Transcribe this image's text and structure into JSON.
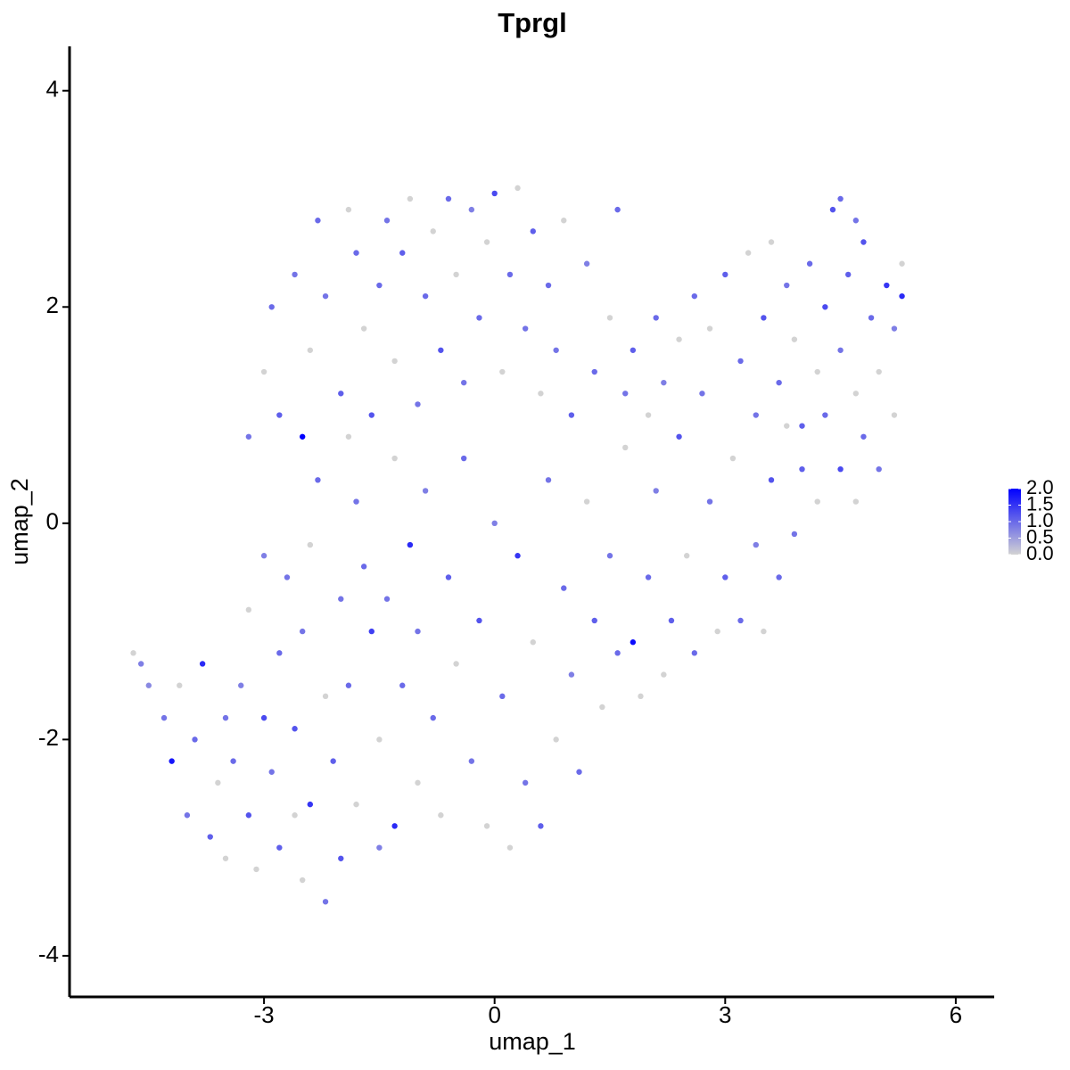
{
  "chart_data": {
    "type": "scatter",
    "title": "Tprgl",
    "x_label": "umap_1",
    "y_label": "umap_2",
    "xlim": [
      -5.53,
      6.5
    ],
    "ylim": [
      -4.38,
      4.41
    ],
    "xticks": [
      -3,
      0,
      3,
      6
    ],
    "yticks": [
      -4,
      -2,
      0,
      2,
      4
    ],
    "color_low": "#d3d3d3",
    "color_high": "#0000ff",
    "color_lim": [
      0,
      2
    ],
    "color_ticks": [
      {
        "value": 0,
        "label": "0.0"
      },
      {
        "value": 0.5,
        "label": "0.5"
      },
      {
        "value": 1,
        "label": "1.0"
      },
      {
        "value": 1.5,
        "label": "1.5"
      },
      {
        "value": 2,
        "label": "2.0"
      }
    ],
    "x": [
      -4.7,
      -4.6,
      -4.5,
      -4.3,
      -4.2,
      -4.0,
      -4.1,
      -3.9,
      -3.8,
      -3.7,
      -3.6,
      -3.5,
      -3.5,
      -3.4,
      -3.3,
      -3.2,
      -3.1,
      -3.0,
      -3.0,
      -3.2,
      -2.9,
      -2.8,
      -2.8,
      -2.7,
      -2.6,
      -2.6,
      -2.5,
      -2.5,
      -2.4,
      -2.4,
      -2.3,
      -2.2,
      -2.2,
      -2.1,
      -2.0,
      -2.0,
      -1.9,
      -1.9,
      -1.8,
      -1.8,
      -1.7,
      -1.6,
      -1.5,
      -1.5,
      -1.4,
      -1.3,
      -1.3,
      -1.2,
      -1.1,
      -1.0,
      -1.0,
      -0.9,
      -0.8,
      -0.7,
      -0.6,
      -0.5,
      -0.4,
      -0.3,
      -0.2,
      -0.1,
      0.0,
      0.1,
      0.2,
      0.3,
      0.4,
      0.5,
      0.6,
      0.7,
      0.8,
      0.9,
      1.0,
      1.1,
      1.2,
      1.3,
      1.4,
      1.5,
      1.6,
      1.8,
      1.7,
      1.9,
      2.0,
      2.1,
      2.2,
      2.3,
      2.4,
      2.5,
      2.6,
      2.8,
      2.9,
      3.0,
      3.1,
      3.2,
      3.4,
      3.5,
      3.6,
      3.7,
      3.8,
      3.9,
      4.0,
      4.2,
      4.3,
      4.5,
      4.7,
      4.8,
      5.0,
      5.2,
      -3.2,
      -3.0,
      -2.9,
      -2.8,
      -2.6,
      -2.5,
      -2.4,
      -2.3,
      -2.2,
      -2.0,
      -1.9,
      -1.8,
      -1.7,
      -1.6,
      -1.5,
      -1.4,
      -1.3,
      -1.2,
      -1.1,
      -1.0,
      -0.9,
      -0.8,
      -0.7,
      -0.6,
      -0.5,
      -0.4,
      -0.3,
      -0.2,
      -0.1,
      0.0,
      0.1,
      0.2,
      0.3,
      0.4,
      0.5,
      0.6,
      0.7,
      0.8,
      0.9,
      1.0,
      1.2,
      1.3,
      1.5,
      1.6,
      1.7,
      1.8,
      2.0,
      2.1,
      2.2,
      2.4,
      2.6,
      2.7,
      2.8,
      3.0,
      3.2,
      3.3,
      3.4,
      3.5,
      3.6,
      3.7,
      3.8,
      3.9,
      4.0,
      4.1,
      4.2,
      4.3,
      4.4,
      4.5,
      4.6,
      4.7,
      4.8,
      4.9,
      5.0,
      5.1,
      5.2,
      5.3,
      5.3,
      4.5,
      4.7
    ],
    "y": [
      -1.2,
      -1.3,
      -1.5,
      -1.8,
      -2.2,
      -2.7,
      -1.5,
      -2.0,
      -1.3,
      -2.9,
      -2.4,
      -1.8,
      -3.1,
      -2.2,
      -1.5,
      -2.7,
      -3.2,
      -1.8,
      -0.3,
      -0.8,
      -2.3,
      -1.2,
      -3.0,
      -0.5,
      -2.7,
      -1.9,
      -3.3,
      -1.0,
      -0.2,
      -2.6,
      0.4,
      -3.5,
      -1.6,
      -2.2,
      -0.7,
      -3.1,
      0.8,
      -1.5,
      -2.6,
      0.2,
      -0.4,
      -1.0,
      -3.0,
      -2.0,
      -0.7,
      -2.8,
      0.6,
      -1.5,
      -0.2,
      -2.4,
      -1.0,
      0.3,
      -1.8,
      -2.7,
      -0.5,
      -1.3,
      0.6,
      -2.2,
      -0.9,
      -2.8,
      0.0,
      -1.6,
      -3.0,
      -0.3,
      -2.4,
      -1.1,
      -2.8,
      0.4,
      -2.0,
      -0.6,
      -1.4,
      -2.3,
      0.2,
      -0.9,
      -1.7,
      -0.3,
      -1.2,
      -1.1,
      0.7,
      -1.6,
      -0.5,
      0.3,
      -1.4,
      -0.9,
      0.8,
      -0.3,
      -1.2,
      0.2,
      -1.0,
      -0.5,
      0.6,
      -0.9,
      -0.2,
      -1.0,
      0.4,
      -0.5,
      0.9,
      -0.1,
      0.5,
      0.2,
      1.0,
      0.5,
      0.2,
      0.8,
      0.5,
      1.0,
      0.8,
      1.4,
      2.0,
      1.0,
      2.3,
      0.8,
      1.6,
      2.8,
      2.1,
      1.2,
      2.9,
      2.5,
      1.8,
      1.0,
      2.2,
      2.8,
      1.5,
      2.5,
      3.0,
      1.1,
      2.1,
      2.7,
      1.6,
      3.0,
      2.3,
      1.3,
      2.9,
      1.9,
      2.6,
      3.05,
      1.4,
      2.3,
      3.1,
      1.8,
      2.7,
      1.2,
      2.2,
      1.6,
      2.8,
      1.0,
      2.4,
      1.4,
      1.9,
      2.9,
      1.2,
      1.6,
      1.0,
      1.9,
      1.3,
      1.7,
      2.1,
      1.2,
      1.8,
      2.3,
      1.5,
      2.5,
      1.0,
      1.9,
      2.6,
      1.3,
      2.2,
      1.7,
      0.9,
      2.4,
      1.4,
      2.0,
      2.9,
      1.6,
      2.3,
      1.2,
      2.6,
      1.9,
      1.4,
      2.2,
      1.8,
      2.1,
      2.4,
      3.0,
      2.8
    ],
    "values": [
      0,
      0.8,
      0.7,
      0.9,
      1.8,
      0.9,
      0,
      1.0,
      1.6,
      1.1,
      0,
      0.9,
      0,
      1.0,
      0.8,
      1.2,
      0,
      1.3,
      0.8,
      0,
      0.9,
      1.0,
      1.1,
      0.9,
      0,
      1.2,
      0,
      0.9,
      0,
      1.5,
      1.0,
      0.9,
      0,
      1.1,
      0.9,
      1.2,
      0,
      1.0,
      0,
      0.9,
      1.0,
      1.4,
      0.8,
      0,
      0.9,
      1.6,
      0,
      1.0,
      1.6,
      0,
      0.9,
      0.8,
      1.0,
      0,
      1.1,
      0,
      1.0,
      0.9,
      1.2,
      0,
      0.8,
      1.0,
      0,
      1.5,
      0.9,
      0,
      1.1,
      0.9,
      0,
      1.0,
      0.8,
      1.0,
      0,
      1.1,
      0,
      0.9,
      1.0,
      1.9,
      0,
      0,
      1.0,
      0.8,
      0,
      1.1,
      1.2,
      0,
      1.0,
      0.9,
      0,
      1.1,
      0,
      1.0,
      0.8,
      0,
      1.2,
      1.0,
      0,
      0.9,
      1.1,
      0,
      1.0,
      1.3,
      0,
      1.0,
      0.9,
      0,
      0.9,
      0,
      1.0,
      1.1,
      0.9,
      2.0,
      0,
      1.0,
      0.9,
      1.1,
      0,
      1.0,
      0,
      1.2,
      1.0,
      0.9,
      0,
      1.1,
      0,
      0.9,
      1.0,
      0,
      1.2,
      1.0,
      0,
      0.9,
      0.8,
      1.0,
      0,
      1.3,
      0,
      1.0,
      0,
      0.9,
      1.1,
      0,
      1.0,
      0.9,
      0,
      1.1,
      0.8,
      1.0,
      0,
      1.0,
      0.9,
      1.1,
      0,
      1.0,
      0.8,
      0,
      1.0,
      0.9,
      0,
      1.1,
      1.0,
      0,
      0.9,
      1.2,
      0,
      1.0,
      0.9,
      0,
      1.1,
      1.0,
      0,
      1.3,
      1.2,
      0.9,
      1.1,
      0,
      1.2,
      1.0,
      0,
      1.5,
      0.8,
      1.6,
      0,
      1.0,
      0.9
    ]
  }
}
